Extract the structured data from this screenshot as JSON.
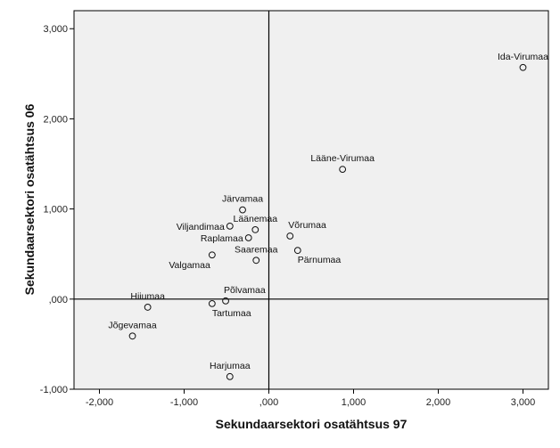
{
  "chart_data": {
    "type": "scatter",
    "title": "",
    "xlabel": "Sekundaarsektori osatähtsus 97",
    "ylabel": "Sekundaarsektori osatähtsus 06",
    "xlim": [
      -2.3,
      3.3
    ],
    "ylim": [
      -1.0,
      3.2
    ],
    "grid": false,
    "reference_lines": {
      "x": 0,
      "y": 0
    },
    "colors": {
      "plot_background": "#f0f0f0",
      "marker_edge": "#111111",
      "axis": "#000000"
    },
    "x_ticks": [
      {
        "value": -2,
        "label": "-2,000"
      },
      {
        "value": -1,
        "label": "-1,000"
      },
      {
        "value": 0,
        "label": ",000"
      },
      {
        "value": 1,
        "label": "1,000"
      },
      {
        "value": 2,
        "label": "2,000"
      },
      {
        "value": 3,
        "label": "3,000"
      }
    ],
    "y_ticks": [
      {
        "value": -1,
        "label": "-1,000"
      },
      {
        "value": 0,
        "label": ",000"
      },
      {
        "value": 1,
        "label": "1,000"
      },
      {
        "value": 2,
        "label": "2,000"
      },
      {
        "value": 3,
        "label": "3,000"
      }
    ],
    "points": [
      {
        "label": "Ida-Virumaa",
        "x": 3.0,
        "y": 2.57,
        "label_pos": "above"
      },
      {
        "label": "Lääne-Virumaa",
        "x": 0.87,
        "y": 1.44,
        "label_pos": "above"
      },
      {
        "label": "Järvamaa",
        "x": -0.31,
        "y": 0.99,
        "label_pos": "above"
      },
      {
        "label": "Läänemaa",
        "x": -0.16,
        "y": 0.77,
        "label_pos": "above"
      },
      {
        "label": "Viljandimaa",
        "x": -0.46,
        "y": 0.81,
        "label_pos": "left"
      },
      {
        "label": "Raplamaa",
        "x": -0.24,
        "y": 0.68,
        "label_pos": "left"
      },
      {
        "label": "Võrumaa",
        "x": 0.25,
        "y": 0.7,
        "label_pos": "above-right"
      },
      {
        "label": "Pärnumaa",
        "x": 0.34,
        "y": 0.54,
        "label_pos": "below-right"
      },
      {
        "label": "Saaremaa",
        "x": -0.15,
        "y": 0.43,
        "label_pos": "above"
      },
      {
        "label": "Valgamaa",
        "x": -0.67,
        "y": 0.49,
        "label_pos": "below-left"
      },
      {
        "label": "Põlvamaa",
        "x": -0.51,
        "y": -0.02,
        "label_pos": "above-right"
      },
      {
        "label": "Tartumaa",
        "x": -0.67,
        "y": -0.05,
        "label_pos": "below-right"
      },
      {
        "label": "Hiiumaa",
        "x": -1.43,
        "y": -0.09,
        "label_pos": "above"
      },
      {
        "label": "Jõgevamaa",
        "x": -1.61,
        "y": -0.41,
        "label_pos": "above"
      },
      {
        "label": "Harjumaa",
        "x": -0.46,
        "y": -0.86,
        "label_pos": "above"
      }
    ]
  }
}
